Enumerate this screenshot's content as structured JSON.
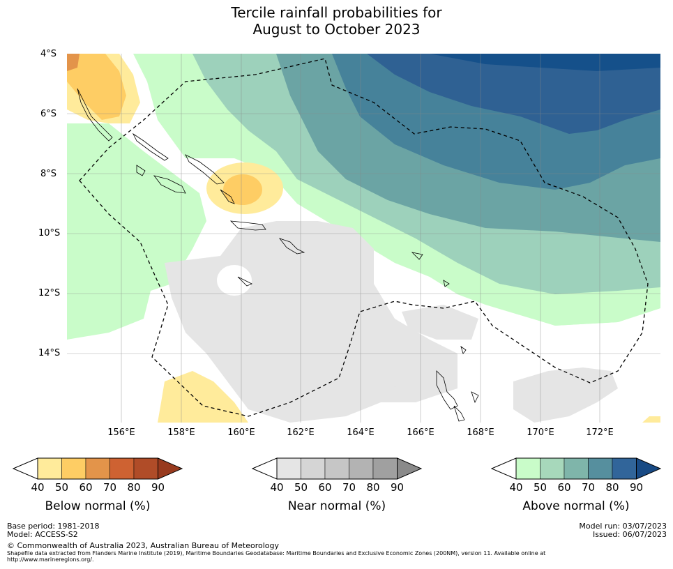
{
  "title_line1": "Tercile rainfall probabilities for",
  "title_line2": "August to October 2023",
  "map": {
    "lat_labels": [
      "4°S",
      "6°S",
      "8°S",
      "10°S",
      "12°S",
      "14°S"
    ],
    "lon_labels": [
      "156°E",
      "158°E",
      "160°E",
      "162°E",
      "164°E",
      "166°E",
      "168°E",
      "170°E",
      "172°E"
    ],
    "lon_range": [
      154,
      174
    ],
    "lat_range": [
      -16.4,
      -4
    ],
    "colors": {
      "below_40": "#ffeb9b",
      "below_50": "#fecd64",
      "below_60": "#e3944a",
      "near_40": "#e5e5e5",
      "above_40": "#c9fcc9",
      "above_50": "#9dd1bb",
      "above_60": "#6ba4a4",
      "above_70": "#46829a",
      "above_80": "#2f6193",
      "above_90": "#15508a"
    }
  },
  "legends": {
    "below": {
      "caption": "Below normal (%)",
      "ticks": [
        "40",
        "50",
        "60",
        "70",
        "80",
        "90"
      ],
      "colors": [
        "#ffeb9b",
        "#fecd64",
        "#e3944a",
        "#ce6232",
        "#b04c28",
        "#983a1e"
      ]
    },
    "near": {
      "caption": "Near normal (%)",
      "ticks": [
        "40",
        "50",
        "60",
        "70",
        "80",
        "90"
      ],
      "colors": [
        "#e5e5e5",
        "#d5d5d5",
        "#c6c6c6",
        "#b3b3b3",
        "#a0a0a0",
        "#8a8a8a"
      ]
    },
    "above": {
      "caption": "Above normal (%)",
      "ticks": [
        "40",
        "50",
        "60",
        "70",
        "80",
        "90"
      ],
      "colors": [
        "#c9fcc9",
        "#a7d8bb",
        "#7fb5aa",
        "#568f9e",
        "#31659a",
        "#184a84"
      ]
    }
  },
  "footer": {
    "base_period": "Base period: 1981-2018",
    "model": "Model: ACCESS-S2",
    "copyright": "© Commonwealth of Australia 2023, Australian Bureau of Meteorology",
    "shapefile_line1": "Shapefile data extracted from Flanders Marine Institute (2019), Maritime Boundaries Geodatabase: Maritime Boundaries and Exclusive Economic Zones (200NM), version 11. Available online at",
    "shapefile_line2": "http://www.marineregions.org/.",
    "model_run": "Model run: 03/07/2023",
    "issued": "Issued: 06/07/2023"
  }
}
